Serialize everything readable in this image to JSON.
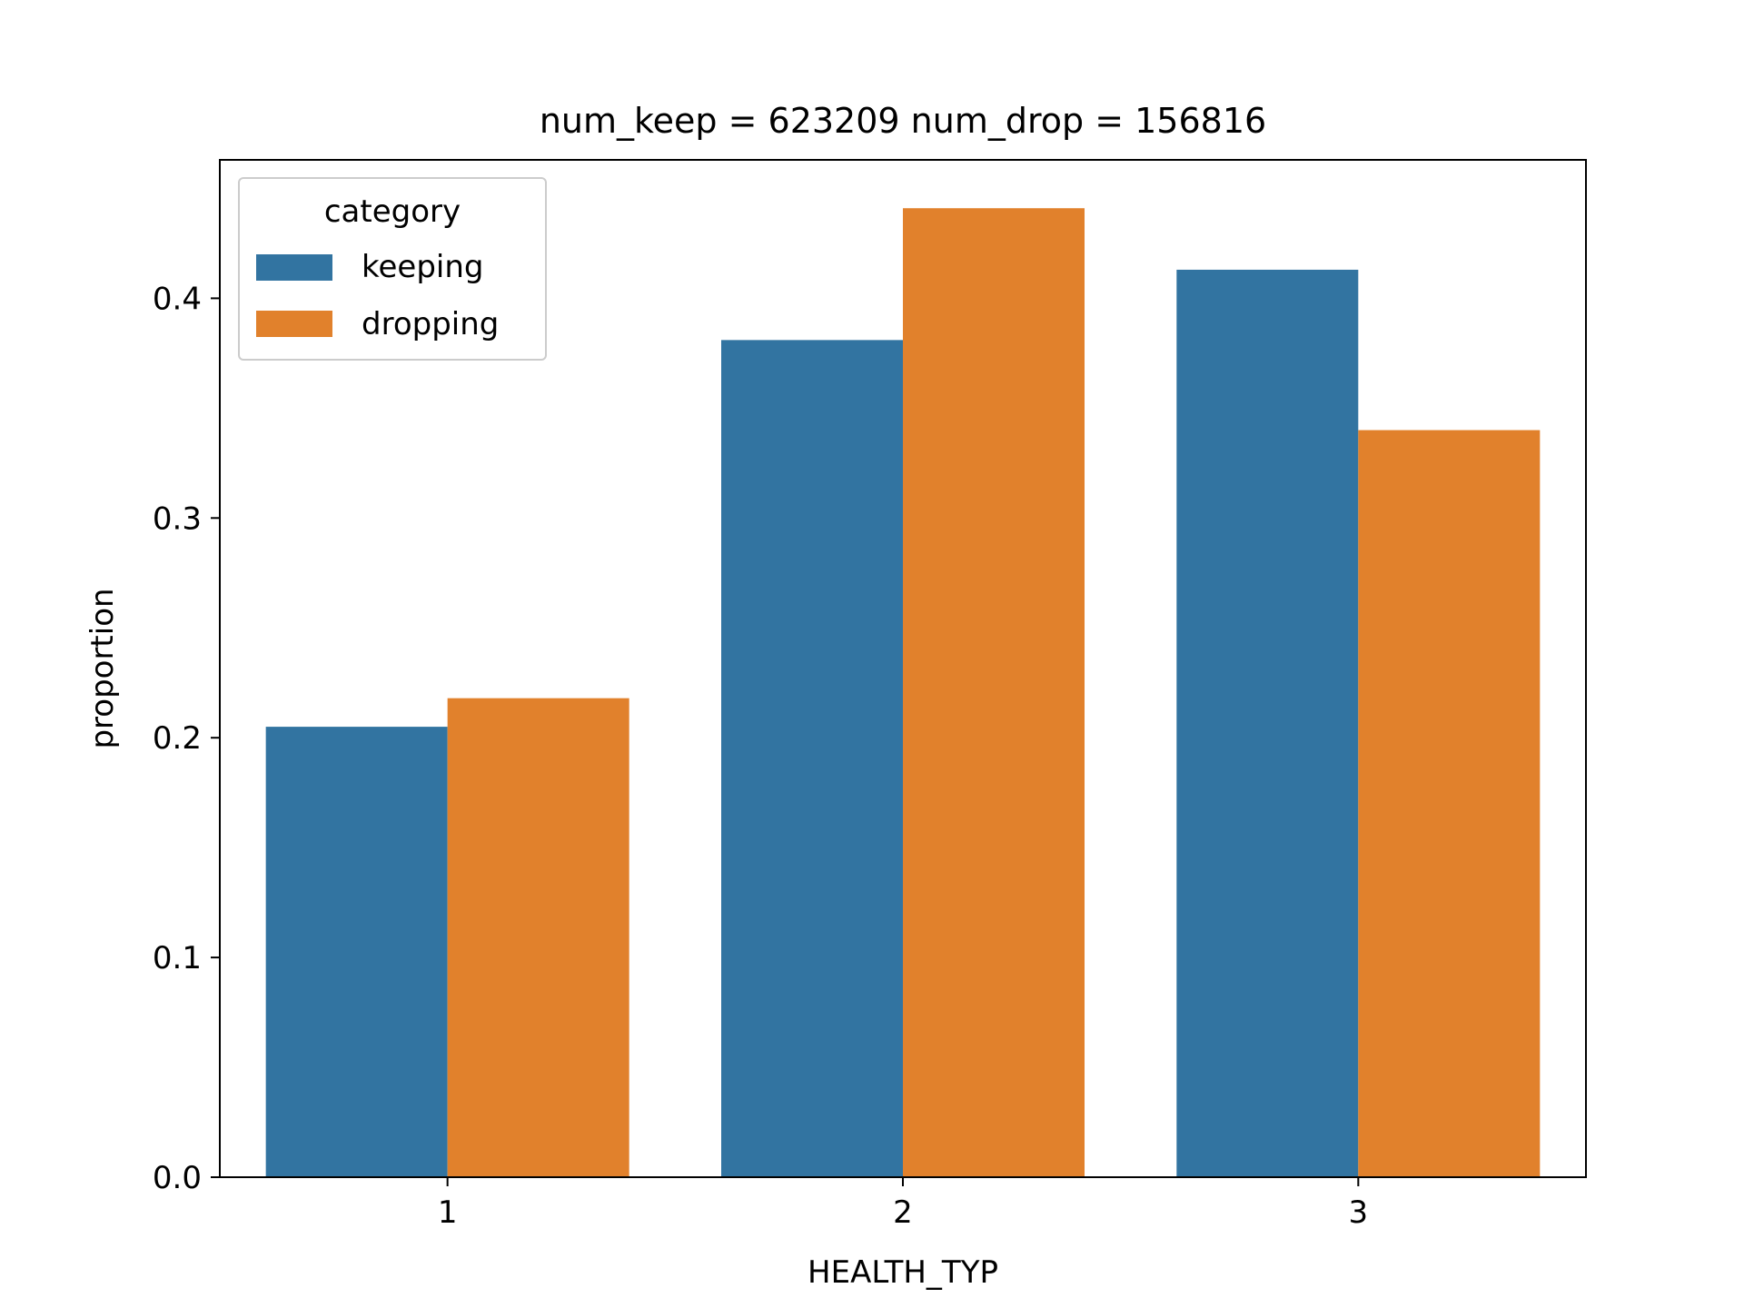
{
  "chart_data": {
    "type": "bar",
    "title": "num_keep = 623209  num_drop = 156816",
    "xlabel": "HEALTH_TYP",
    "ylabel": "proportion",
    "categories": [
      "1",
      "2",
      "3"
    ],
    "series": [
      {
        "name": "keeping",
        "color": "#3274a1",
        "values": [
          0.205,
          0.381,
          0.413
        ]
      },
      {
        "name": "dropping",
        "color": "#e1812c",
        "values": [
          0.218,
          0.441,
          0.34
        ]
      }
    ],
    "ylim": [
      0,
      0.463
    ],
    "yticks": [
      "0.0",
      "0.1",
      "0.2",
      "0.3",
      "0.4"
    ],
    "grid": false,
    "legend": {
      "title": "category",
      "position": "top-left"
    }
  }
}
